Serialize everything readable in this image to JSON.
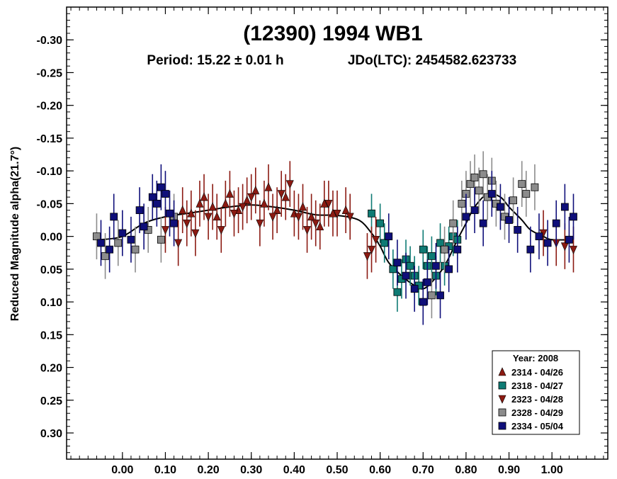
{
  "chart_data": {
    "type": "scatter",
    "title": "(12390) 1994 WB1",
    "subtitle_period": "Period: 15.22 ± 0.01 h",
    "subtitle_epoch": "JDo(LTC): 2454582.623733",
    "xlabel": "",
    "ylabel": "Reduced Magnitude alpha(21.7°)",
    "xlim": [
      -0.13,
      1.13
    ],
    "ylim": [
      -0.35,
      0.34
    ],
    "y_inverted": true,
    "x_ticks": [
      0.0,
      0.1,
      0.2,
      0.3,
      0.4,
      0.5,
      0.6,
      0.7,
      0.8,
      0.9,
      1.0
    ],
    "x_tick_labels": [
      "0.00",
      "0.10",
      "0.20",
      "0.30",
      "0.40",
      "0.50",
      "0.60",
      "0.70",
      "0.80",
      "0.90",
      "1.00"
    ],
    "y_ticks": [
      -0.3,
      -0.25,
      -0.2,
      -0.15,
      -0.1,
      -0.05,
      0.0,
      0.05,
      0.1,
      0.15,
      0.2,
      0.25,
      0.3
    ],
    "y_tick_labels": [
      "-0.30",
      "-0.25",
      "-0.20",
      "-0.15",
      "-0.10",
      "-0.05",
      "0.00",
      "0.05",
      "0.10",
      "0.15",
      "0.20",
      "0.25",
      "0.30"
    ],
    "grid": false,
    "legend": {
      "title": "Year: 2008",
      "position": "bottom-right",
      "entries": [
        {
          "label": "2314 - 04/26",
          "marker": "triangle-up",
          "color": "#8b1a12"
        },
        {
          "label": "2318 - 04/27",
          "marker": "square",
          "color": "#0e7b74"
        },
        {
          "label": "2323 - 04/28",
          "marker": "triangle-down",
          "color": "#8b1a12"
        },
        {
          "label": "2328 - 04/29",
          "marker": "square",
          "color": "#8c8c8c"
        },
        {
          "label": "2334 - 05/04",
          "marker": "square",
          "color": "#0f0f7a"
        }
      ]
    },
    "fit_curve": {
      "phase": [
        -0.05,
        0.0,
        0.05,
        0.1,
        0.15,
        0.2,
        0.25,
        0.3,
        0.35,
        0.4,
        0.45,
        0.5,
        0.55,
        0.58,
        0.6,
        0.62,
        0.65,
        0.68,
        0.7,
        0.72,
        0.75,
        0.78,
        0.8,
        0.82,
        0.85,
        0.88,
        0.9,
        0.93,
        0.95,
        0.98,
        1.0,
        1.05
      ],
      "mag": [
        0.005,
        0.0,
        -0.02,
        -0.03,
        -0.035,
        -0.04,
        -0.045,
        -0.048,
        -0.045,
        -0.04,
        -0.033,
        -0.032,
        -0.025,
        -0.005,
        0.015,
        0.04,
        0.06,
        0.075,
        0.08,
        0.07,
        0.045,
        0.005,
        -0.02,
        -0.045,
        -0.065,
        -0.06,
        -0.045,
        -0.025,
        -0.01,
        0.0,
        0.005,
        0.005
      ]
    },
    "series": [
      {
        "name": "2314 - 04/26",
        "marker": "triangle-up",
        "color": "#8b1a12",
        "error": 0.035,
        "x": [
          0.14,
          0.16,
          0.18,
          0.19,
          0.21,
          0.22,
          0.24,
          0.25,
          0.27,
          0.29,
          0.31,
          0.33,
          0.34,
          0.36,
          0.38,
          0.4,
          0.42,
          0.44,
          0.46,
          0.47,
          0.49,
          0.52
        ],
        "y": [
          -0.04,
          -0.035,
          -0.05,
          -0.06,
          -0.045,
          -0.03,
          -0.05,
          -0.065,
          -0.04,
          -0.055,
          -0.07,
          -0.05,
          -0.075,
          -0.04,
          -0.06,
          -0.035,
          -0.045,
          -0.03,
          -0.015,
          -0.05,
          -0.035,
          -0.04
        ]
      },
      {
        "name": "2318 - 04/27",
        "marker": "square",
        "color": "#0e7b74",
        "error": 0.03,
        "x": [
          0.58,
          0.6,
          0.61,
          0.63,
          0.64,
          0.65,
          0.66,
          0.67,
          0.68,
          0.69,
          0.7,
          0.71,
          0.72,
          0.73,
          0.74,
          0.75,
          0.76,
          0.77,
          0.78
        ],
        "y": [
          -0.035,
          -0.02,
          0.01,
          0.05,
          0.085,
          0.065,
          0.035,
          0.045,
          0.06,
          0.075,
          0.02,
          0.045,
          0.03,
          0.06,
          0.01,
          0.045,
          0.015,
          0.0,
          0.005
        ]
      },
      {
        "name": "2323 - 04/28",
        "marker": "triangle-down",
        "color": "#8b1a12",
        "error": 0.035,
        "x": [
          0.1,
          0.13,
          0.15,
          0.17,
          0.2,
          0.23,
          0.26,
          0.28,
          0.3,
          0.32,
          0.35,
          0.37,
          0.39,
          0.41,
          0.43,
          0.45,
          0.48,
          0.5,
          0.53,
          0.57,
          0.58,
          0.59,
          0.98,
          1.01,
          1.03,
          1.05
        ],
        "y": [
          -0.01,
          0.01,
          -0.02,
          -0.005,
          -0.03,
          -0.01,
          -0.035,
          -0.045,
          -0.06,
          -0.02,
          -0.03,
          -0.065,
          -0.08,
          -0.03,
          -0.01,
          -0.02,
          -0.05,
          -0.035,
          -0.03,
          0.03,
          0.02,
          0.005,
          -0.005,
          0.01,
          0.015,
          0.02
        ]
      },
      {
        "name": "2328 - 04/29",
        "marker": "square",
        "color": "#8c8c8c",
        "error": 0.035,
        "x": [
          -0.06,
          -0.04,
          -0.01,
          0.03,
          0.06,
          0.09,
          0.12,
          0.72,
          0.75,
          0.77,
          0.79,
          0.8,
          0.81,
          0.82,
          0.83,
          0.84,
          0.85,
          0.86,
          0.87,
          0.89,
          0.91,
          0.93,
          0.94,
          0.96
        ],
        "y": [
          0.0,
          0.03,
          0.01,
          0.02,
          -0.01,
          0.005,
          -0.03,
          0.09,
          0.02,
          -0.02,
          -0.05,
          -0.065,
          -0.08,
          -0.09,
          -0.07,
          -0.095,
          -0.06,
          -0.085,
          -0.05,
          -0.03,
          -0.055,
          -0.08,
          -0.065,
          -0.075
        ]
      },
      {
        "name": "2334 - 05/04",
        "marker": "square",
        "color": "#0f0f7a",
        "error": 0.035,
        "x": [
          -0.05,
          -0.03,
          -0.02,
          0.0,
          0.02,
          0.04,
          0.05,
          0.07,
          0.08,
          0.09,
          0.1,
          0.11,
          0.12,
          0.62,
          0.64,
          0.66,
          0.68,
          0.7,
          0.71,
          0.73,
          0.74,
          0.76,
          0.78,
          0.8,
          0.82,
          0.84,
          0.86,
          0.88,
          0.9,
          0.92,
          0.95,
          0.97,
          0.99,
          1.01,
          1.03,
          1.04,
          1.05
        ],
        "y": [
          0.01,
          0.02,
          -0.03,
          -0.005,
          0.005,
          -0.04,
          -0.015,
          -0.06,
          -0.05,
          -0.075,
          -0.065,
          -0.035,
          -0.02,
          0.0,
          0.04,
          0.06,
          0.08,
          0.1,
          0.07,
          0.045,
          0.09,
          0.05,
          0.02,
          -0.03,
          -0.04,
          -0.02,
          -0.065,
          -0.045,
          -0.025,
          -0.01,
          0.02,
          0.0,
          0.01,
          -0.02,
          -0.045,
          0.005,
          -0.03
        ]
      }
    ]
  }
}
